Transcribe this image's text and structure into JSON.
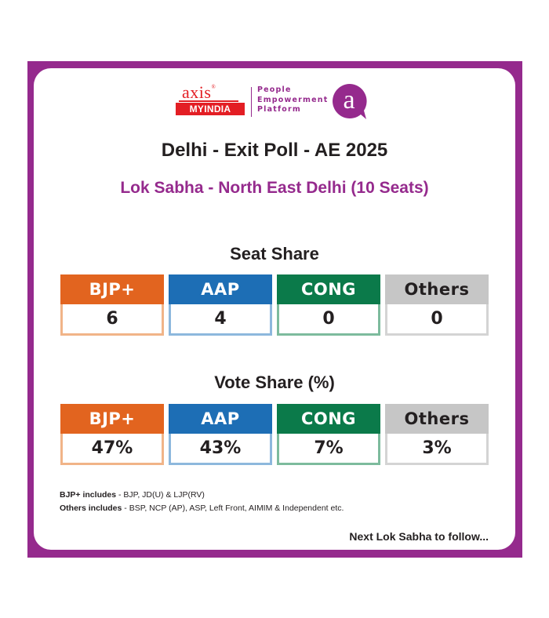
{
  "logo": {
    "axis_word": "axis",
    "registered": "®",
    "myindia_my": "MY",
    "myindia_india": "INDIA",
    "tagline": [
      "People",
      "Empowerment",
      "Platform"
    ],
    "badge_letter": "a",
    "colors": {
      "brand_red": "#e31e24",
      "brand_purple": "#952a8d"
    }
  },
  "header": {
    "title": "Delhi - Exit Poll - AE 2025",
    "subtitle": "Lok Sabha - North East Delhi (10 Seats)"
  },
  "seat_share": {
    "title": "Seat Share",
    "parties": [
      {
        "name": "BJP+",
        "value": "6"
      },
      {
        "name": "AAP",
        "value": "4"
      },
      {
        "name": "CONG",
        "value": "0"
      },
      {
        "name": "Others",
        "value": "0"
      }
    ]
  },
  "vote_share": {
    "title": "Vote Share (%)",
    "parties": [
      {
        "name": "BJP+",
        "value": "47%"
      },
      {
        "name": "AAP",
        "value": "43%"
      },
      {
        "name": "CONG",
        "value": "7%"
      },
      {
        "name": "Others",
        "value": "3%"
      }
    ]
  },
  "notes": {
    "bjp_label": "BJP+ includes",
    "bjp_text": " - BJP, JD(U) & LJP(RV)",
    "others_label": "Others includes",
    "others_text": " - BSP, NCP (AP), ASP, Left Front, AIMIM & Independent etc."
  },
  "footer": {
    "follow_text": "Next Lok Sabha to follow..."
  },
  "colors": {
    "bjp": "#e2641f",
    "aap": "#1d6eb5",
    "cong": "#0b7a4a",
    "others": "#c6c6c6",
    "frame": "#952a8d"
  }
}
